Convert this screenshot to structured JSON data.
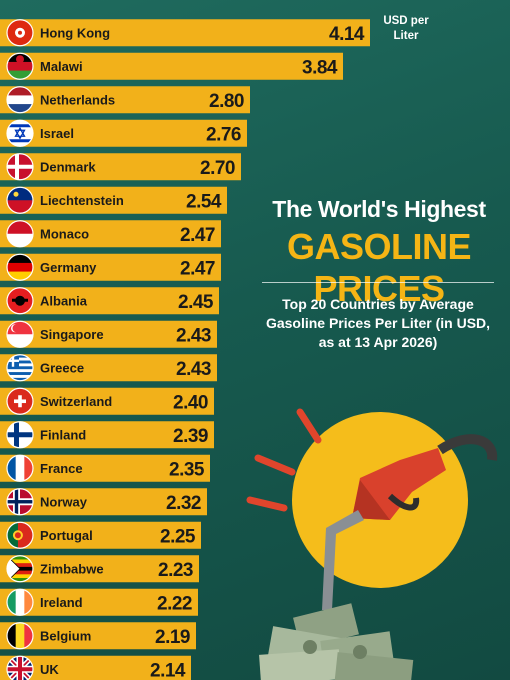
{
  "header": {
    "title_line1": "The World's Highest",
    "title_line2": "GASOLINE PRICES",
    "subtitle": "Top 20 Countries by Average Gasoline Prices Per Liter (in USD, as at 13 Apr 2026)",
    "unit_label": "USD per Liter"
  },
  "colors": {
    "bar": "#f2b11a",
    "background": "#1b6355",
    "title_accent": "#f5b515"
  },
  "chart_data": {
    "type": "bar",
    "orientation": "horizontal",
    "categories": [
      "Hong Kong",
      "Malawi",
      "Netherlands",
      "Israel",
      "Denmark",
      "Liechtenstein",
      "Monaco",
      "Germany",
      "Albania",
      "Singapore",
      "Greece",
      "Switzerland",
      "Finland",
      "France",
      "Norway",
      "Portugal",
      "Zimbabwe",
      "Ireland",
      "Belgium",
      "UK"
    ],
    "values": [
      4.14,
      3.84,
      2.8,
      2.76,
      2.7,
      2.54,
      2.47,
      2.47,
      2.45,
      2.43,
      2.43,
      2.4,
      2.39,
      2.35,
      2.32,
      2.25,
      2.23,
      2.22,
      2.19,
      2.14
    ],
    "value_labels": [
      "4.14",
      "3.84",
      "2.80",
      "2.76",
      "2.70",
      "2.54",
      "2.47",
      "2.47",
      "2.45",
      "2.43",
      "2.43",
      "2.40",
      "2.39",
      "2.35",
      "2.32",
      "2.25",
      "2.23",
      "2.22",
      "2.19",
      "2.14"
    ],
    "flags": [
      "hong-kong-flag",
      "malawi-flag",
      "netherlands-flag",
      "israel-flag",
      "denmark-flag",
      "liechtenstein-flag",
      "monaco-flag",
      "germany-flag",
      "albania-flag",
      "singapore-flag",
      "greece-flag",
      "switzerland-flag",
      "finland-flag",
      "france-flag",
      "norway-flag",
      "portugal-flag",
      "zimbabwe-flag",
      "ireland-flag",
      "belgium-flag",
      "uk-flag"
    ],
    "title": "",
    "xlabel": "",
    "ylabel": "",
    "unit": "USD per Liter",
    "legend": "none",
    "grid": false
  }
}
